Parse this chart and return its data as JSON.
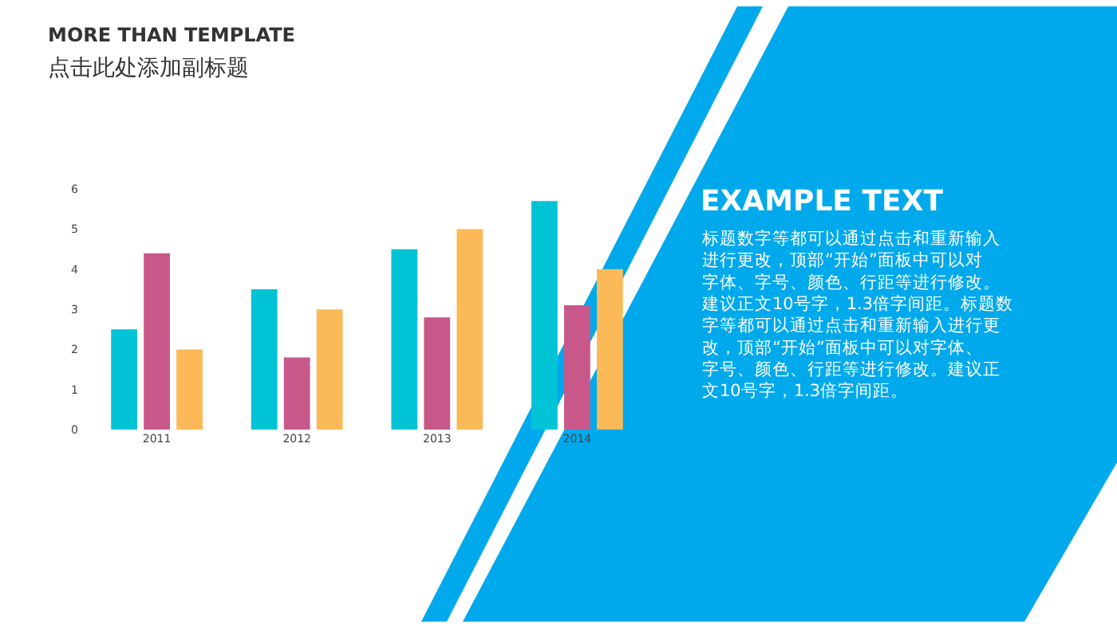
{
  "chart_data": {
    "type": "bar",
    "title": "MORE THAN TEMPLATE",
    "subtitle": "点击此处添加副标题",
    "categories": [
      "2011",
      "2012",
      "2013",
      "2014"
    ],
    "series": [
      {
        "color": "#00c4d6",
        "values": [
          2.5,
          3.5,
          4.5,
          5.7
        ]
      },
      {
        "color": "#c9588a",
        "values": [
          4.4,
          1.8,
          2.8,
          3.1
        ]
      },
      {
        "color": "#fbb957",
        "values": [
          2.0,
          3.0,
          5.0,
          4.0
        ]
      }
    ],
    "ylim": [
      0,
      6
    ],
    "yticks": [
      0,
      1,
      2,
      3,
      4,
      5,
      6
    ],
    "grid": false,
    "annotations": [
      "EXAMPLE TEXT",
      "标题数字等都可以通过点击和重新输入进行更改，顶部“开始”面板中可以对字体、字号、颜色、行距等进行修改。建议正文10号字，1.3倍字间距。标题数字等都可以通过点击和重新输入进行更改，顶部“开始”面板中可以对字体、字号、颜色、行距等进行修改。建议正文10号字，1.3倍字间距。"
    ]
  }
}
